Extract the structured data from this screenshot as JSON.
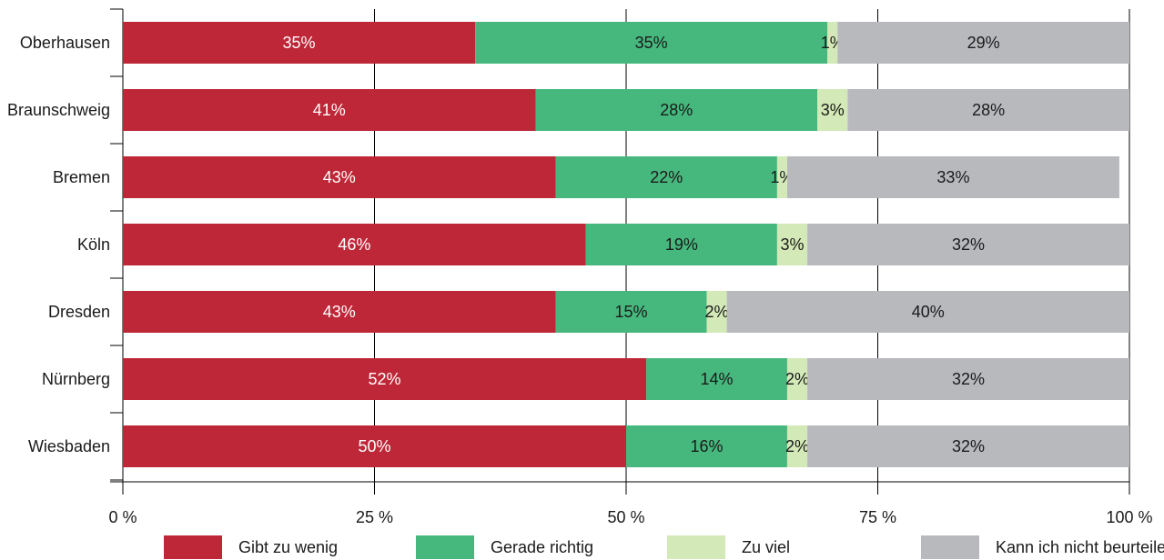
{
  "chart_data": {
    "type": "bar",
    "orientation": "horizontal",
    "stacked": true,
    "categories": [
      "Oberhausen",
      "Braunschweig",
      "Bremen",
      "Köln",
      "Dresden",
      "Nürnberg",
      "Wiesbaden"
    ],
    "series": [
      {
        "name": "Gibt zu wenig",
        "color": "#be2737",
        "values": [
          35,
          41,
          43,
          46,
          43,
          52,
          50
        ],
        "labels": [
          "35%",
          "41%",
          "43%",
          "46%",
          "43%",
          "52%",
          "50%"
        ]
      },
      {
        "name": "Gerade richtig",
        "color": "#46b87d",
        "values": [
          35,
          28,
          22,
          19,
          15,
          14,
          16
        ],
        "labels": [
          "35%",
          "28%",
          "22%",
          "19%",
          "15%",
          "14%",
          "16%"
        ]
      },
      {
        "name": "Zu viel",
        "color": "#d3e9b7",
        "values": [
          1,
          3,
          1,
          3,
          2,
          2,
          2
        ],
        "labels": [
          "1%",
          "3%",
          "1%",
          "3%",
          "2%",
          "2%",
          "2%"
        ]
      },
      {
        "name": "Kann ich nicht beurteilen",
        "color": "#b8b9bd",
        "values": [
          29,
          28,
          33,
          32,
          40,
          32,
          32
        ],
        "labels": [
          "29%",
          "28%",
          "33%",
          "32%",
          "40%",
          "32%",
          "32%"
        ]
      }
    ],
    "xlim": [
      0,
      100
    ],
    "xticks": [
      0,
      25,
      50,
      75,
      100
    ],
    "xtick_labels": [
      "0 %",
      "25 %",
      "50 %",
      "75 %",
      "100 %"
    ],
    "title": "",
    "xlabel": "",
    "ylabel": "",
    "grid": "vertical",
    "legend": "bottom"
  }
}
